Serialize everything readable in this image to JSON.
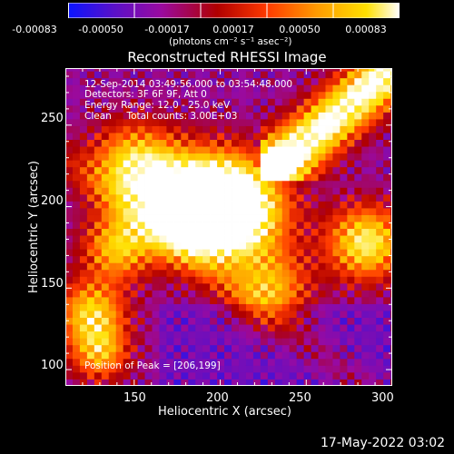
{
  "colorbar": {
    "tick_labels": [
      "-0.00083",
      "-0.00050",
      "-0.00017",
      "0.00017",
      "0.00050",
      "0.00083"
    ],
    "unit_label": "(photons cm⁻² s⁻¹ asec⁻²)",
    "colors": [
      "#0a14ff",
      "#5a10c8",
      "#9a0aa0",
      "#b00000",
      "#ff3a00",
      "#ff9a00",
      "#ffe000",
      "#ffffff"
    ]
  },
  "chart_data": {
    "type": "heatmap",
    "title": "Reconstructed RHESSI Image",
    "xlabel": "Heliocentric X (arcsec)",
    "ylabel": "Heliocentric Y (arcsec)",
    "x_ticks": [
      "150",
      "200",
      "250",
      "300"
    ],
    "y_ticks": [
      "100",
      "150",
      "200",
      "250"
    ],
    "xlim": [
      110,
      300
    ],
    "ylim": [
      90,
      285
    ],
    "peak": [
      206,
      199
    ],
    "annotations": [
      "12-Sep-2014 03:49:56.000 to 03:54:48.000",
      "Detectors: 3F 6F 9F, Att 0",
      "Energy Range: 12.0 - 25.0 keV",
      "Clean     Total counts: 3.00E+03"
    ],
    "peak_label": "Position of Peak = [206,199]"
  },
  "footer": {
    "timestamp": "17-May-2022 03:02"
  }
}
